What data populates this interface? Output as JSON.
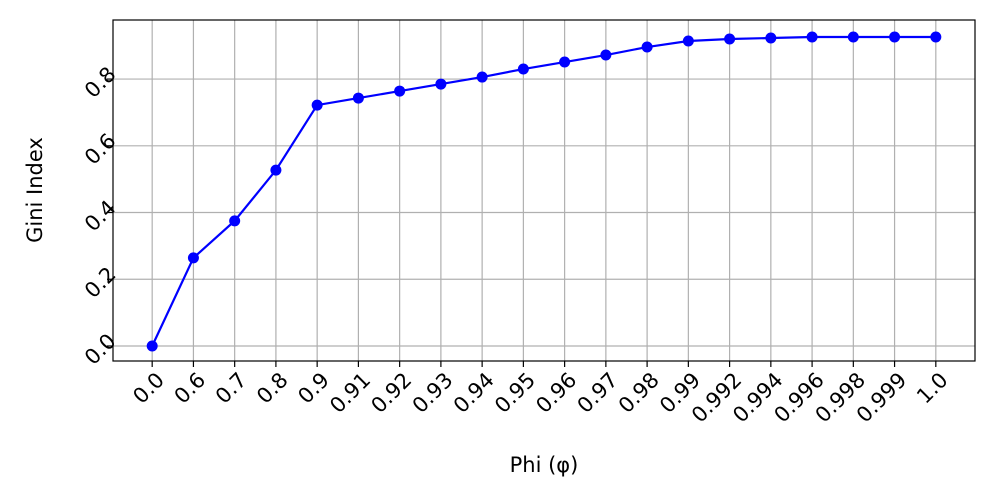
{
  "chart_data": {
    "type": "line",
    "x_label": "Phi (φ)",
    "y_label": "Gini Index",
    "categories": [
      "0.0",
      "0.6",
      "0.7",
      "0.8",
      "0.9",
      "0.91",
      "0.92",
      "0.93",
      "0.94",
      "0.95",
      "0.96",
      "0.97",
      "0.98",
      "0.99",
      "0.992",
      "0.994",
      "0.996",
      "0.998",
      "0.999",
      "1.0"
    ],
    "values": [
      0.0,
      0.264,
      0.375,
      0.527,
      0.722,
      0.743,
      0.764,
      0.785,
      0.806,
      0.83,
      0.851,
      0.872,
      0.896,
      0.914,
      0.92,
      0.923,
      0.926,
      0.926,
      0.926,
      0.926
    ],
    "color": "#0000ff",
    "ylim": [
      -0.045,
      0.977
    ],
    "yticks": [
      {
        "value": 0,
        "label": "0.0"
      },
      0.2,
      0.4,
      0.6,
      0.8
    ],
    "grid": true
  }
}
